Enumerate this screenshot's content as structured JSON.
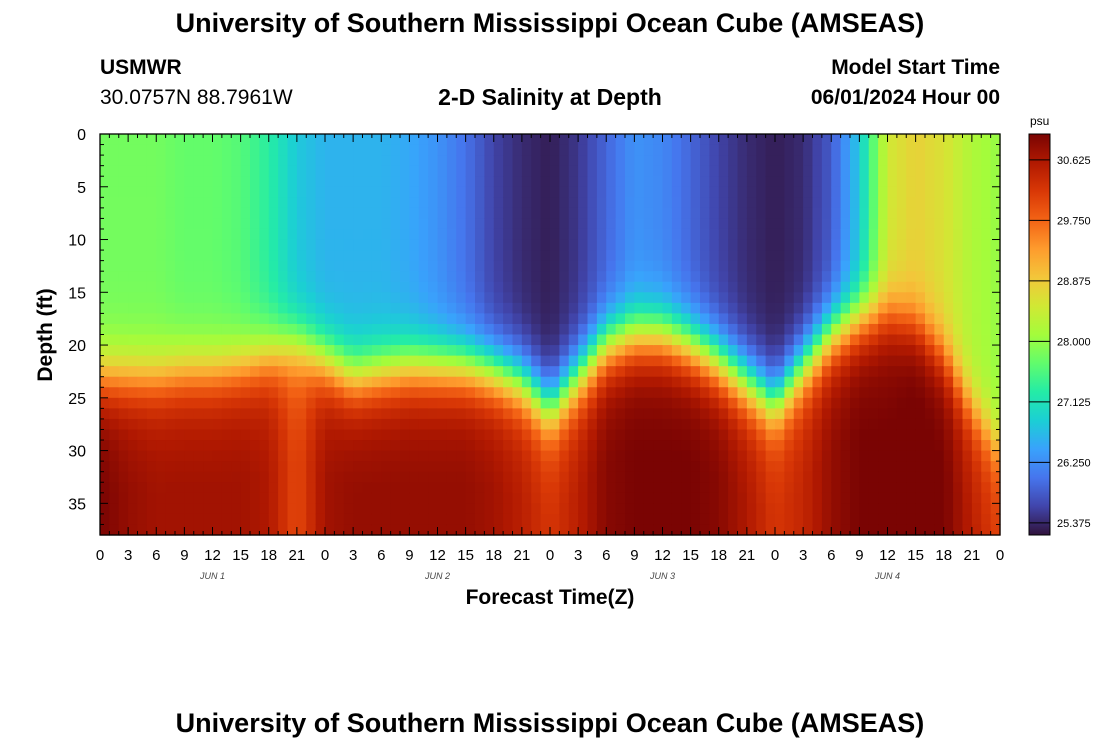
{
  "page": {
    "title_top": "University of Southern Mississippi Ocean Cube (AMSEAS)",
    "title_bottom": "University of Southern Mississippi Ocean Cube (AMSEAS)",
    "station": "USMWR",
    "coords": "30.0757N  88.7961W",
    "subtitle": "2-D Salinity at Depth",
    "model_start_label": "Model Start Time",
    "model_start_value": "06/01/2024 Hour 00"
  },
  "chart_data": {
    "type": "heatmap",
    "title": "2-D Salinity at Depth",
    "xlabel": "Forecast Time(Z)",
    "ylabel": "Depth (ft)",
    "x_range_hours": [
      0,
      96
    ],
    "y_range_ft": [
      0,
      38
    ],
    "y_reversed": true,
    "x_ticks": [
      "0",
      "3",
      "6",
      "9",
      "12",
      "15",
      "18",
      "21",
      "0",
      "3",
      "6",
      "9",
      "12",
      "15",
      "18",
      "21",
      "0",
      "3",
      "6",
      "9",
      "12",
      "15",
      "18",
      "21",
      "0",
      "3",
      "6",
      "9",
      "12",
      "15",
      "18",
      "21",
      "0"
    ],
    "y_ticks": [
      "0",
      "5",
      "10",
      "15",
      "20",
      "25",
      "30",
      "35"
    ],
    "day_labels": [
      "JUN 1",
      "JUN 2",
      "JUN 3",
      "JUN 4"
    ],
    "colorbar": {
      "unit": "psu",
      "min": 25.2,
      "max": 31.0,
      "ticks": [
        "30.625",
        "29.750",
        "28.875",
        "28.000",
        "27.125",
        "26.250",
        "25.375"
      ],
      "colors": [
        "#30123b",
        "#4145ab",
        "#4675ed",
        "#39a2fc",
        "#1bcfd4",
        "#24eca6",
        "#61fc6c",
        "#a4fc3b",
        "#d1e834",
        "#f3c63a",
        "#fe9b2d",
        "#f36315",
        "#d93806",
        "#b11901",
        "#7a0403"
      ]
    },
    "fields": {
      "columns_hours": [
        0,
        3,
        6,
        9,
        12,
        15,
        18,
        21,
        24,
        27,
        30,
        33,
        36,
        39,
        42,
        45,
        48,
        51,
        54,
        57,
        60,
        63,
        66,
        69,
        72,
        75,
        78,
        81,
        84,
        87,
        90,
        93,
        96
      ],
      "halocline_depth_ft": [
        23.0,
        23.0,
        23.0,
        22.5,
        22.5,
        22.0,
        21.0,
        20.0,
        21.5,
        23.0,
        22.5,
        22.0,
        22.0,
        22.0,
        22.5,
        23.5,
        26.0,
        23.0,
        20.0,
        19.0,
        19.0,
        20.0,
        21.5,
        23.5,
        25.5,
        22.0,
        19.0,
        17.5,
        17.0,
        18.0,
        21.0,
        26.0,
        30.0
      ],
      "surface_psu": [
        27.8,
        27.8,
        27.8,
        27.7,
        27.7,
        27.6,
        27.3,
        26.8,
        26.6,
        26.6,
        26.6,
        26.5,
        26.3,
        26.0,
        25.6,
        25.4,
        25.3,
        25.5,
        25.9,
        26.3,
        26.2,
        25.9,
        25.6,
        25.4,
        25.3,
        25.4,
        25.8,
        26.8,
        28.5,
        28.8,
        28.6,
        28.2,
        28.0
      ],
      "bottom_psu": [
        30.9,
        30.7,
        30.6,
        30.6,
        30.6,
        30.6,
        30.5,
        29.9,
        30.6,
        30.7,
        30.7,
        30.7,
        30.7,
        30.7,
        30.6,
        30.4,
        30.1,
        30.4,
        30.8,
        30.9,
        30.9,
        30.9,
        30.8,
        30.5,
        30.1,
        30.3,
        30.7,
        30.9,
        30.9,
        31.0,
        30.9,
        30.4,
        30.0
      ]
    }
  }
}
